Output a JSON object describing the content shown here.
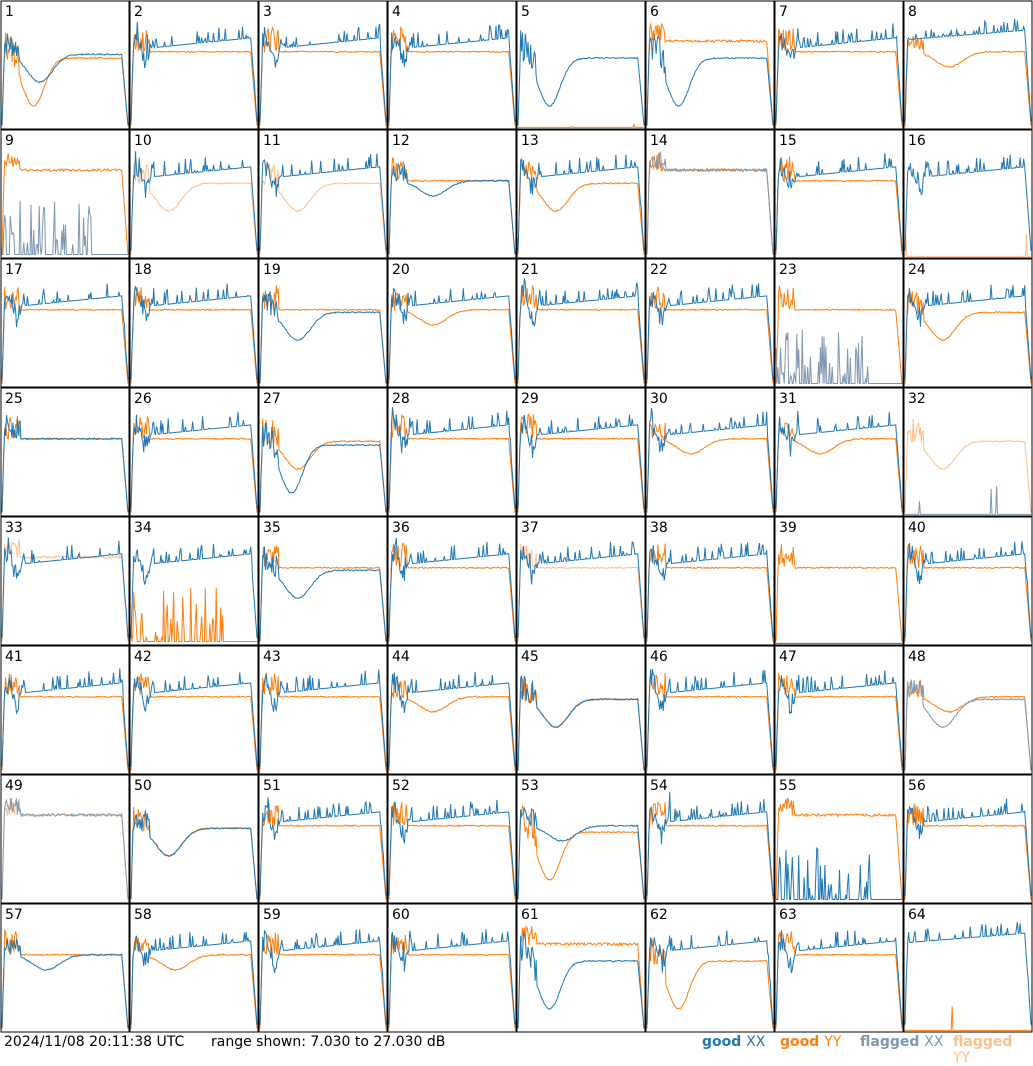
{
  "chart_data": {
    "type": "line",
    "layout": "8x8 small multiples",
    "x_ticks_shown": false,
    "y_ticks_shown": false,
    "range_db": [
      7.03,
      27.03
    ],
    "panels": [
      {
        "id": "1",
        "xx": {
          "profile": "dip-mid",
          "flagged": false
        },
        "yy": {
          "profile": "dip-deep",
          "flagged": false
        }
      },
      {
        "id": "2",
        "xx": {
          "profile": "rising-spiky",
          "flagged": false
        },
        "yy": {
          "profile": "flat",
          "flagged": false
        }
      },
      {
        "id": "3",
        "xx": {
          "profile": "rising-spiky",
          "flagged": false
        },
        "yy": {
          "profile": "flat",
          "flagged": false
        }
      },
      {
        "id": "4",
        "xx": {
          "profile": "rising-spiky",
          "flagged": false
        },
        "yy": {
          "profile": "flat",
          "flagged": false
        }
      },
      {
        "id": "5",
        "xx": {
          "profile": "dip-deep",
          "flagged": false
        },
        "yy": {
          "profile": "dead",
          "flagged": false
        }
      },
      {
        "id": "6",
        "xx": {
          "profile": "dip-deep",
          "flagged": false
        },
        "yy": {
          "profile": "flat-high",
          "flagged": false
        }
      },
      {
        "id": "7",
        "xx": {
          "profile": "rising-spiky",
          "flagged": false
        },
        "yy": {
          "profile": "flat",
          "flagged": false
        }
      },
      {
        "id": "8",
        "xx": {
          "profile": "rising-spiky-high",
          "flagged": false
        },
        "yy": {
          "profile": "dip-shallow",
          "flagged": false
        }
      },
      {
        "id": "9",
        "xx": {
          "profile": "dead-spikes",
          "flagged": true
        },
        "yy": {
          "profile": "flat-high",
          "flagged": false
        }
      },
      {
        "id": "10",
        "xx": {
          "profile": "rising-spiky",
          "flagged": false
        },
        "yy": {
          "profile": "dip-mid",
          "flagged": true
        }
      },
      {
        "id": "11",
        "xx": {
          "profile": "rising-spiky",
          "flagged": false
        },
        "yy": {
          "profile": "dip-mid",
          "flagged": true
        }
      },
      {
        "id": "12",
        "xx": {
          "profile": "dip-shallow",
          "flagged": false
        },
        "yy": {
          "profile": "flat",
          "flagged": false
        }
      },
      {
        "id": "13",
        "xx": {
          "profile": "rising-spiky",
          "flagged": false
        },
        "yy": {
          "profile": "dip-mid",
          "flagged": false
        }
      },
      {
        "id": "14",
        "xx": {
          "profile": "flat-high",
          "flagged": true
        },
        "yy": {
          "profile": "flat-high",
          "flagged": false
        }
      },
      {
        "id": "15",
        "xx": {
          "profile": "rising-spiky",
          "flagged": false
        },
        "yy": {
          "profile": "flat",
          "flagged": false
        }
      },
      {
        "id": "16",
        "xx": {
          "profile": "rising-spiky",
          "flagged": false
        },
        "yy": {
          "profile": "dead",
          "flagged": true
        }
      },
      {
        "id": "17",
        "xx": {
          "profile": "rising-spiky",
          "flagged": false
        },
        "yy": {
          "profile": "flat",
          "flagged": false
        }
      },
      {
        "id": "18",
        "xx": {
          "profile": "rising-spiky",
          "flagged": false
        },
        "yy": {
          "profile": "flat",
          "flagged": false
        }
      },
      {
        "id": "19",
        "xx": {
          "profile": "dip-mid",
          "flagged": false
        },
        "yy": {
          "profile": "flat",
          "flagged": false
        }
      },
      {
        "id": "20",
        "xx": {
          "profile": "rising-spiky",
          "flagged": false
        },
        "yy": {
          "profile": "dip-shallow",
          "flagged": false
        }
      },
      {
        "id": "21",
        "xx": {
          "profile": "rising-spiky",
          "flagged": false
        },
        "yy": {
          "profile": "flat",
          "flagged": false
        }
      },
      {
        "id": "22",
        "xx": {
          "profile": "rising-spiky",
          "flagged": false
        },
        "yy": {
          "profile": "flat",
          "flagged": false
        }
      },
      {
        "id": "23",
        "xx": {
          "profile": "dead-spikes",
          "flagged": true
        },
        "yy": {
          "profile": "flat",
          "flagged": false
        }
      },
      {
        "id": "24",
        "xx": {
          "profile": "rising-spiky",
          "flagged": false
        },
        "yy": {
          "profile": "dip-mid",
          "flagged": false
        }
      },
      {
        "id": "25",
        "xx": {
          "profile": "flat",
          "flagged": false
        },
        "yy": {
          "profile": "flat",
          "flagged": false
        }
      },
      {
        "id": "26",
        "xx": {
          "profile": "rising-spiky",
          "flagged": false
        },
        "yy": {
          "profile": "flat",
          "flagged": false
        }
      },
      {
        "id": "27",
        "xx": {
          "profile": "dip-deep",
          "flagged": false
        },
        "yy": {
          "profile": "dip-mid",
          "flagged": false
        }
      },
      {
        "id": "28",
        "xx": {
          "profile": "rising-spiky",
          "flagged": false
        },
        "yy": {
          "profile": "flat",
          "flagged": false
        }
      },
      {
        "id": "29",
        "xx": {
          "profile": "rising-spiky",
          "flagged": false
        },
        "yy": {
          "profile": "flat",
          "flagged": false
        }
      },
      {
        "id": "30",
        "xx": {
          "profile": "rising-spiky",
          "flagged": false
        },
        "yy": {
          "profile": "dip-shallow",
          "flagged": false
        }
      },
      {
        "id": "31",
        "xx": {
          "profile": "rising-spiky",
          "flagged": false
        },
        "yy": {
          "profile": "dip-shallow",
          "flagged": false
        }
      },
      {
        "id": "32",
        "xx": {
          "profile": "dead",
          "flagged": true
        },
        "yy": {
          "profile": "dip-mid",
          "flagged": true
        }
      },
      {
        "id": "33",
        "xx": {
          "profile": "rising-spiky",
          "flagged": false
        },
        "yy": {
          "profile": "flat-high",
          "flagged": true
        }
      },
      {
        "id": "34",
        "xx": {
          "profile": "rising-spiky",
          "flagged": false
        },
        "yy": {
          "profile": "dead-spikes",
          "flagged": false
        }
      },
      {
        "id": "35",
        "xx": {
          "profile": "dip-mid",
          "flagged": false
        },
        "yy": {
          "profile": "flat",
          "flagged": false
        }
      },
      {
        "id": "36",
        "xx": {
          "profile": "rising-spiky",
          "flagged": false
        },
        "yy": {
          "profile": "flat",
          "flagged": false
        }
      },
      {
        "id": "37",
        "xx": {
          "profile": "rising-spiky",
          "flagged": false
        },
        "yy": {
          "profile": "flat",
          "flagged": true
        }
      },
      {
        "id": "38",
        "xx": {
          "profile": "rising-spiky",
          "flagged": false
        },
        "yy": {
          "profile": "flat",
          "flagged": false
        }
      },
      {
        "id": "39",
        "xx": {
          "profile": "dead",
          "flagged": false
        },
        "yy": {
          "profile": "flat",
          "flagged": false
        }
      },
      {
        "id": "40",
        "xx": {
          "profile": "rising-spiky",
          "flagged": false
        },
        "yy": {
          "profile": "flat",
          "flagged": false
        }
      },
      {
        "id": "41",
        "xx": {
          "profile": "rising-spiky",
          "flagged": false
        },
        "yy": {
          "profile": "flat",
          "flagged": false
        }
      },
      {
        "id": "42",
        "xx": {
          "profile": "rising-spiky",
          "flagged": false
        },
        "yy": {
          "profile": "flat",
          "flagged": false
        }
      },
      {
        "id": "43",
        "xx": {
          "profile": "rising-spiky",
          "flagged": false
        },
        "yy": {
          "profile": "flat",
          "flagged": false
        }
      },
      {
        "id": "44",
        "xx": {
          "profile": "rising-spiky",
          "flagged": false
        },
        "yy": {
          "profile": "dip-shallow",
          "flagged": false
        }
      },
      {
        "id": "45",
        "xx": {
          "profile": "dip-mid",
          "flagged": false
        },
        "yy": {
          "profile": "dip-mid",
          "flagged": false
        }
      },
      {
        "id": "46",
        "xx": {
          "profile": "rising-spiky",
          "flagged": false
        },
        "yy": {
          "profile": "flat",
          "flagged": false
        }
      },
      {
        "id": "47",
        "xx": {
          "profile": "rising-spiky",
          "flagged": false
        },
        "yy": {
          "profile": "flat",
          "flagged": false
        }
      },
      {
        "id": "48",
        "xx": {
          "profile": "dip-mid",
          "flagged": true
        },
        "yy": {
          "profile": "dip-shallow",
          "flagged": false
        }
      },
      {
        "id": "49",
        "xx": {
          "profile": "flat-high",
          "flagged": true
        },
        "yy": {
          "profile": "flat-high",
          "flagged": true
        }
      },
      {
        "id": "50",
        "xx": {
          "profile": "dip-mid",
          "flagged": false
        },
        "yy": {
          "profile": "dip-mid",
          "flagged": false
        }
      },
      {
        "id": "51",
        "xx": {
          "profile": "rising-spiky",
          "flagged": false
        },
        "yy": {
          "profile": "flat",
          "flagged": false
        }
      },
      {
        "id": "52",
        "xx": {
          "profile": "rising-spiky",
          "flagged": false
        },
        "yy": {
          "profile": "flat",
          "flagged": false
        }
      },
      {
        "id": "53",
        "xx": {
          "profile": "dip-shallow",
          "flagged": false
        },
        "yy": {
          "profile": "dip-deep",
          "flagged": false
        }
      },
      {
        "id": "54",
        "xx": {
          "profile": "rising-spiky",
          "flagged": false
        },
        "yy": {
          "profile": "flat",
          "flagged": false
        }
      },
      {
        "id": "55",
        "xx": {
          "profile": "dead-spikes",
          "flagged": false
        },
        "yy": {
          "profile": "flat-high",
          "flagged": false
        }
      },
      {
        "id": "56",
        "xx": {
          "profile": "rising-spiky",
          "flagged": false
        },
        "yy": {
          "profile": "flat",
          "flagged": false
        }
      },
      {
        "id": "57",
        "xx": {
          "profile": "dip-shallow",
          "flagged": false
        },
        "yy": {
          "profile": "flat",
          "flagged": false
        }
      },
      {
        "id": "58",
        "xx": {
          "profile": "rising-spiky",
          "flagged": false
        },
        "yy": {
          "profile": "dip-shallow",
          "flagged": false
        }
      },
      {
        "id": "59",
        "xx": {
          "profile": "rising-spiky",
          "flagged": false
        },
        "yy": {
          "profile": "flat",
          "flagged": false
        }
      },
      {
        "id": "60",
        "xx": {
          "profile": "rising-spiky",
          "flagged": false
        },
        "yy": {
          "profile": "flat",
          "flagged": false
        }
      },
      {
        "id": "61",
        "xx": {
          "profile": "dip-deep",
          "flagged": false
        },
        "yy": {
          "profile": "flat-high",
          "flagged": false
        }
      },
      {
        "id": "62",
        "xx": {
          "profile": "rising-spiky",
          "flagged": false
        },
        "yy": {
          "profile": "dip-deep",
          "flagged": false
        }
      },
      {
        "id": "63",
        "xx": {
          "profile": "rising-spiky",
          "flagged": false
        },
        "yy": {
          "profile": "flat",
          "flagged": false
        }
      },
      {
        "id": "64",
        "xx": {
          "profile": "rising-spiky-high",
          "flagged": false
        },
        "yy": {
          "profile": "dead",
          "flagged": false
        }
      }
    ]
  },
  "footer": {
    "timestamp": "2024/11/08 20:11:38 UTC",
    "range_text": "range shown: 7.030 to 27.030 dB"
  },
  "legend": [
    {
      "key": "good_xx",
      "label": "good",
      "pol": "XX",
      "color": "#1f77b4"
    },
    {
      "key": "good_yy",
      "label": "good",
      "pol": "YY",
      "color": "#ff7f0e"
    },
    {
      "key": "flagged_xx",
      "label": "flagged",
      "pol": "XX",
      "color": "#7f97b2"
    },
    {
      "key": "flagged_yy",
      "label": "flagged",
      "pol": "YY",
      "color": "#ffbf8a"
    }
  ],
  "colors": {
    "good_xx": "#1f77b4",
    "good_yy": "#ff7f0e",
    "flagged_xx": "#7f97b2",
    "flagged_yy": "#ffbf8a",
    "frame": "#000000"
  }
}
